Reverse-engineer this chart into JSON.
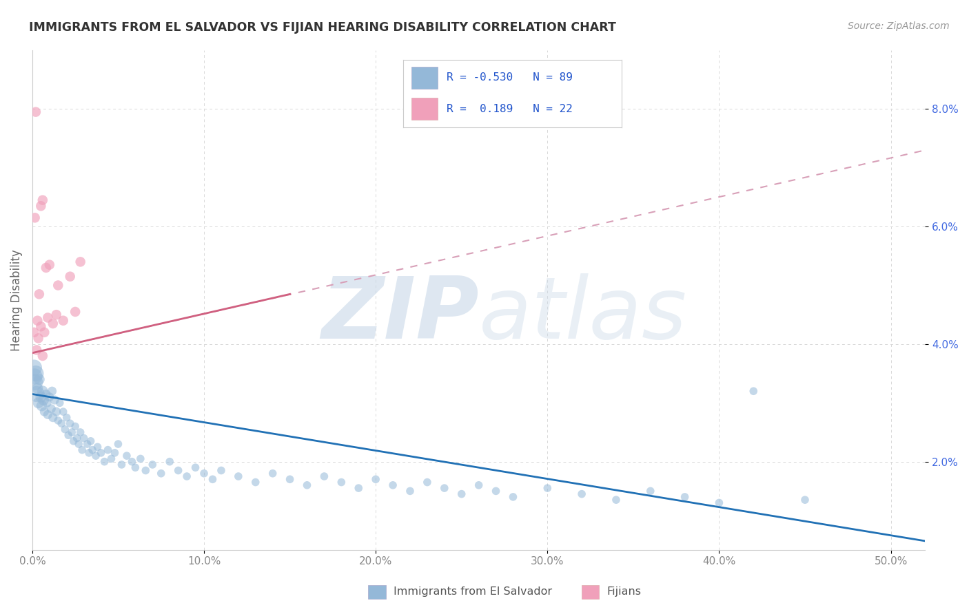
{
  "title": "IMMIGRANTS FROM EL SALVADOR VS FIJIAN HEARING DISABILITY CORRELATION CHART",
  "source": "Source: ZipAtlas.com",
  "ylabel": "Hearing Disability",
  "y_ticks": [
    2.0,
    4.0,
    6.0,
    8.0
  ],
  "x_ticks": [
    0,
    10,
    20,
    30,
    40,
    50
  ],
  "x_range": [
    0.0,
    52.0
  ],
  "y_range": [
    0.5,
    9.0
  ],
  "legend_blue_R": -0.53,
  "legend_blue_N": 89,
  "legend_pink_R": 0.189,
  "legend_pink_N": 22,
  "blue_label": "Immigrants from El Salvador",
  "pink_label": "Fijians",
  "blue_scatter": [
    [
      0.15,
      3.35
    ],
    [
      0.2,
      3.5
    ],
    [
      0.25,
      3.15
    ],
    [
      0.3,
      3.25
    ],
    [
      0.35,
      3.0
    ],
    [
      0.4,
      3.4
    ],
    [
      0.5,
      3.1
    ],
    [
      0.55,
      2.95
    ],
    [
      0.6,
      3.2
    ],
    [
      0.65,
      3.05
    ],
    [
      0.7,
      2.85
    ],
    [
      0.8,
      3.15
    ],
    [
      0.85,
      3.0
    ],
    [
      0.9,
      2.8
    ],
    [
      1.0,
      3.1
    ],
    [
      1.1,
      2.9
    ],
    [
      1.15,
      3.2
    ],
    [
      1.2,
      2.75
    ],
    [
      1.3,
      3.05
    ],
    [
      1.4,
      2.85
    ],
    [
      1.5,
      2.7
    ],
    [
      1.6,
      3.0
    ],
    [
      1.7,
      2.65
    ],
    [
      1.8,
      2.85
    ],
    [
      1.9,
      2.55
    ],
    [
      2.0,
      2.75
    ],
    [
      2.1,
      2.45
    ],
    [
      2.2,
      2.65
    ],
    [
      2.3,
      2.5
    ],
    [
      2.4,
      2.35
    ],
    [
      2.5,
      2.6
    ],
    [
      2.6,
      2.4
    ],
    [
      2.7,
      2.3
    ],
    [
      2.8,
      2.5
    ],
    [
      2.9,
      2.2
    ],
    [
      3.0,
      2.4
    ],
    [
      3.2,
      2.3
    ],
    [
      3.3,
      2.15
    ],
    [
      3.4,
      2.35
    ],
    [
      3.5,
      2.2
    ],
    [
      3.7,
      2.1
    ],
    [
      3.8,
      2.25
    ],
    [
      4.0,
      2.15
    ],
    [
      4.2,
      2.0
    ],
    [
      4.4,
      2.2
    ],
    [
      4.6,
      2.05
    ],
    [
      4.8,
      2.15
    ],
    [
      5.0,
      2.3
    ],
    [
      5.2,
      1.95
    ],
    [
      5.5,
      2.1
    ],
    [
      5.8,
      2.0
    ],
    [
      6.0,
      1.9
    ],
    [
      6.3,
      2.05
    ],
    [
      6.6,
      1.85
    ],
    [
      7.0,
      1.95
    ],
    [
      7.5,
      1.8
    ],
    [
      8.0,
      2.0
    ],
    [
      8.5,
      1.85
    ],
    [
      9.0,
      1.75
    ],
    [
      9.5,
      1.9
    ],
    [
      10.0,
      1.8
    ],
    [
      10.5,
      1.7
    ],
    [
      11.0,
      1.85
    ],
    [
      12.0,
      1.75
    ],
    [
      13.0,
      1.65
    ],
    [
      14.0,
      1.8
    ],
    [
      15.0,
      1.7
    ],
    [
      16.0,
      1.6
    ],
    [
      17.0,
      1.75
    ],
    [
      18.0,
      1.65
    ],
    [
      19.0,
      1.55
    ],
    [
      20.0,
      1.7
    ],
    [
      21.0,
      1.6
    ],
    [
      22.0,
      1.5
    ],
    [
      23.0,
      1.65
    ],
    [
      24.0,
      1.55
    ],
    [
      25.0,
      1.45
    ],
    [
      26.0,
      1.6
    ],
    [
      27.0,
      1.5
    ],
    [
      28.0,
      1.4
    ],
    [
      30.0,
      1.55
    ],
    [
      32.0,
      1.45
    ],
    [
      34.0,
      1.35
    ],
    [
      36.0,
      1.5
    ],
    [
      38.0,
      1.4
    ],
    [
      40.0,
      1.3
    ],
    [
      42.0,
      3.2
    ],
    [
      45.0,
      1.35
    ],
    [
      0.1,
      3.6
    ],
    [
      0.12,
      3.45
    ]
  ],
  "pink_scatter": [
    [
      0.2,
      7.95
    ],
    [
      0.5,
      6.35
    ],
    [
      0.6,
      6.45
    ],
    [
      0.15,
      6.15
    ],
    [
      0.8,
      5.3
    ],
    [
      1.0,
      5.35
    ],
    [
      1.5,
      5.0
    ],
    [
      2.2,
      5.15
    ],
    [
      2.8,
      5.4
    ],
    [
      0.4,
      4.85
    ],
    [
      0.3,
      4.4
    ],
    [
      0.5,
      4.3
    ],
    [
      0.7,
      4.2
    ],
    [
      0.9,
      4.45
    ],
    [
      1.2,
      4.35
    ],
    [
      1.4,
      4.5
    ],
    [
      0.25,
      3.9
    ],
    [
      0.6,
      3.8
    ],
    [
      0.1,
      4.2
    ],
    [
      0.35,
      4.1
    ],
    [
      1.8,
      4.4
    ],
    [
      2.5,
      4.55
    ]
  ],
  "blue_line": {
    "x0": 0.0,
    "x1": 52.0,
    "y0": 3.15,
    "y1": 0.65
  },
  "pink_solid_line": {
    "x0": 0.0,
    "x1": 15.0,
    "y0": 3.85,
    "y1": 4.85
  },
  "pink_dash_line": {
    "x0": 0.0,
    "x1": 52.0,
    "y0": 3.85,
    "y1": 7.3
  },
  "background_color": "#ffffff",
  "blue_dot_color": "#94b8d8",
  "pink_dot_color": "#f0a0ba",
  "blue_line_color": "#2171b5",
  "pink_line_color": "#d06080",
  "pink_dash_color": "#d8a0b8",
  "grid_color": "#d8d8d8",
  "title_color": "#333333",
  "source_color": "#999999",
  "tick_color_right": "#4169E1",
  "tick_color_x": "#888888",
  "watermark_color": "#c8d8e8",
  "legend_text_color": "#2255cc"
}
